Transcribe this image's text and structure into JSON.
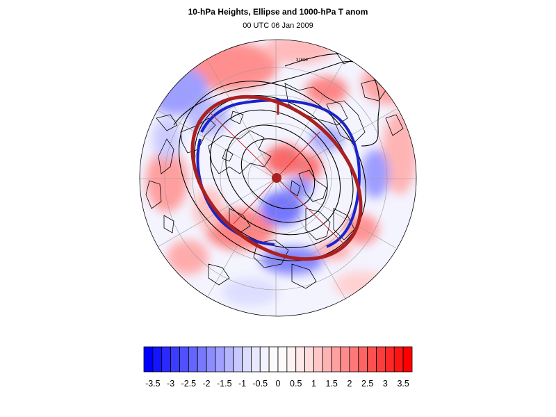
{
  "figure": {
    "title": "10-hPa Heights, Ellipse and 1000-hPa T anom",
    "subtitle": "00 UTC 06 Jan 2009"
  },
  "map": {
    "projection": "north-polar-stereographic",
    "contour_label": "31600",
    "colors": {
      "ellipse": "#aa2020",
      "edge_band": "#1a24c8",
      "contour": "#000000",
      "gridline": "#9a9a9a",
      "coastline": "#000000"
    }
  },
  "colorbar": {
    "levels": [
      -3.75,
      -3.5,
      -3.25,
      -3,
      -2.75,
      -2.5,
      -2.25,
      -2,
      -1.75,
      -1.5,
      -1.25,
      -1,
      -0.75,
      -0.5,
      -0.25,
      0,
      0.25,
      0.5,
      0.75,
      1,
      1.25,
      1.5,
      1.75,
      2,
      2.25,
      2.5,
      2.75,
      3,
      3.25,
      3.5,
      3.75
    ],
    "colors": [
      "#0000ff",
      "#1414ff",
      "#2a2aff",
      "#3c3cff",
      "#5050ff",
      "#6464ff",
      "#7878ff",
      "#8c8cff",
      "#a0a0ff",
      "#b4b4ff",
      "#c8c8ff",
      "#dcdcff",
      "#e8e8ff",
      "#f2f2ff",
      "#fafaff",
      "#fffafa",
      "#fff2f2",
      "#ffe8e8",
      "#ffdcdc",
      "#ffc8c8",
      "#ffb4b4",
      "#ffa0a0",
      "#ff8c8c",
      "#ff7878",
      "#ff6464",
      "#ff5050",
      "#ff3c3c",
      "#ff2828",
      "#ff1414",
      "#ff0000"
    ],
    "tick_labels": [
      "-3.5",
      "-3",
      "-2.5",
      "-2",
      "-1.5",
      "-1",
      "-0.5",
      "0",
      "0.5",
      "1",
      "1.5",
      "2",
      "2.5",
      "3",
      "3.5"
    ],
    "tick_values": [
      -3.5,
      -3,
      -2.5,
      -2,
      -1.5,
      -1,
      -0.5,
      0,
      0.5,
      1,
      1.5,
      2,
      2.5,
      3,
      3.5
    ]
  }
}
